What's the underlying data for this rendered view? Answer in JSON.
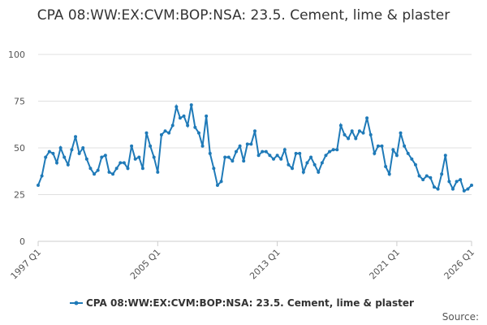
{
  "chart_data": {
    "type": "line",
    "title": "CPA 08:WW:EX:CVM:BOP:NSA: 23.5. Cement, lime & plaster",
    "source": "Source:",
    "categories": [
      "1997 Q1",
      null,
      null,
      null,
      null,
      null,
      null,
      null,
      null,
      null,
      null,
      null,
      null,
      null,
      null,
      null,
      null,
      null,
      null,
      null,
      null,
      null,
      null,
      null,
      null,
      null,
      null,
      null,
      null,
      null,
      null,
      null,
      "2005 Q1",
      null,
      null,
      null,
      null,
      null,
      null,
      null,
      null,
      null,
      null,
      null,
      null,
      null,
      null,
      null,
      null,
      null,
      null,
      null,
      null,
      null,
      null,
      null,
      null,
      null,
      null,
      null,
      null,
      null,
      null,
      null,
      "2013 Q1",
      null,
      null,
      null,
      null,
      null,
      null,
      null,
      null,
      null,
      null,
      null,
      null,
      null,
      null,
      null,
      null,
      null,
      null,
      null,
      null,
      null,
      null,
      null,
      null,
      null,
      null,
      null,
      null,
      null,
      null,
      null,
      "2021 Q1",
      null,
      null,
      null,
      null,
      null,
      null,
      null,
      null,
      null,
      null,
      null,
      null,
      null,
      null,
      null,
      null,
      null,
      null,
      null,
      "2026 Q1"
    ],
    "series": [
      {
        "name": "CPA 08:WW:EX:CVM:BOP:NSA: 23.5. Cement, lime & plaster",
        "color": "#1f7ab8",
        "values": [
          30,
          35,
          45,
          48,
          47,
          42,
          50,
          45,
          41,
          49,
          56,
          47,
          50,
          44,
          39,
          36,
          38,
          45,
          46,
          37,
          36,
          39,
          42,
          42,
          39,
          51,
          44,
          45,
          39,
          58,
          51,
          45,
          37,
          57,
          59,
          58,
          62,
          72,
          66,
          67,
          62,
          73,
          61,
          58,
          51,
          67,
          47,
          39,
          30,
          32,
          45,
          45,
          43,
          48,
          51,
          43,
          52,
          52,
          59,
          46,
          48,
          48,
          46,
          44,
          46,
          44,
          49,
          41,
          39,
          47,
          47,
          37,
          42,
          45,
          41,
          37,
          42,
          46,
          48,
          49,
          49,
          62,
          57,
          55,
          59,
          55,
          59,
          58,
          66,
          57,
          47,
          51,
          51,
          40,
          36,
          49,
          46,
          58,
          51,
          47,
          44,
          41,
          35,
          33,
          35,
          34,
          29,
          28,
          36,
          46,
          32,
          28,
          32,
          33,
          27,
          28,
          30
        ]
      }
    ],
    "ylim": [
      0,
      100
    ],
    "yticks": [
      0,
      25,
      50,
      75,
      100
    ],
    "grid": true
  }
}
